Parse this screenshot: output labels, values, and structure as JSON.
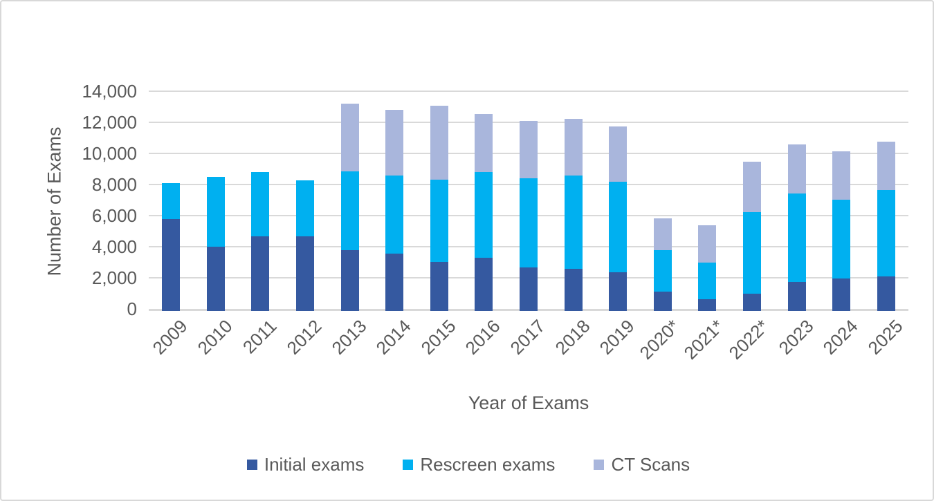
{
  "frame": {
    "background_color": "#ffffff",
    "border_color": "#d8d8d8",
    "text_color": "#595959"
  },
  "chart_data": {
    "type": "bar",
    "stacked": true,
    "title": "",
    "xlabel": "Year of Exams",
    "ylabel": "Number of Exams",
    "categories": [
      "2009",
      "2010",
      "2011",
      "2012",
      "2013",
      "2014",
      "2015",
      "2016",
      "2017",
      "2018",
      "2019",
      "2020*",
      "2021*",
      "2022*",
      "2023",
      "2024",
      "2025"
    ],
    "series": [
      {
        "name": "Initial exams",
        "color": "#3559A0",
        "values": [
          5900,
          4150,
          4800,
          4800,
          3900,
          3700,
          3150,
          3400,
          2800,
          2700,
          2500,
          1250,
          750,
          1100,
          1850,
          2100,
          2200
        ]
      },
      {
        "name": "Rescreen exams",
        "color": "#00B0F0",
        "values": [
          2300,
          4500,
          4150,
          3600,
          5050,
          5000,
          5300,
          5500,
          5750,
          6000,
          5800,
          2650,
          2350,
          5250,
          5700,
          5050,
          5550
        ]
      },
      {
        "name": "CT Scans",
        "color": "#A9B6DC",
        "values": [
          0,
          0,
          0,
          0,
          4350,
          4200,
          4750,
          3750,
          3700,
          3650,
          3550,
          2050,
          2400,
          3250,
          3150,
          3100,
          3100
        ]
      }
    ],
    "ylim": [
      0,
      14000
    ],
    "ytick_step": 2000,
    "ytick_labels": [
      "0",
      "2,000",
      "4,000",
      "6,000",
      "8,000",
      "10,000",
      "12,000",
      "14,000"
    ],
    "grid": "horizontal",
    "gridline_color": "#d9d9d9",
    "axis_line_color": "#d9d9d9",
    "legend_position": "bottom"
  }
}
